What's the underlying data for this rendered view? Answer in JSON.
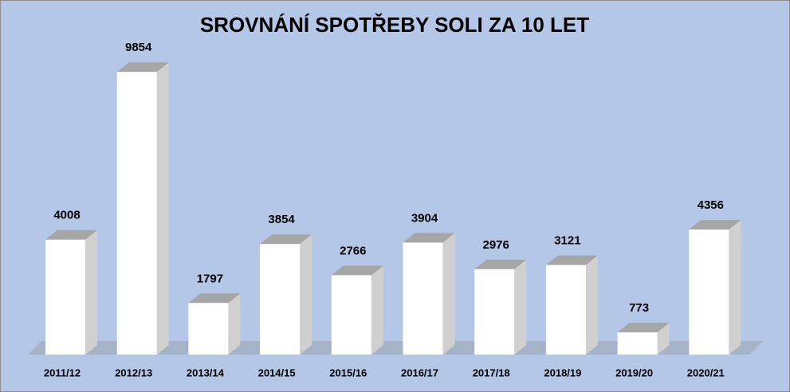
{
  "chart_data": {
    "type": "bar3d",
    "title": "SROVNÁNÍ SPOTŘEBY SOLI ZA 10 LET",
    "categories": [
      "2011/12",
      "2012/13",
      "2013/14",
      "2014/15",
      "2015/16",
      "2016/17",
      "2017/18",
      "2018/19",
      "2019/20",
      "2020/21"
    ],
    "values": [
      4008,
      9854,
      1797,
      3854,
      2766,
      3904,
      2976,
      3121,
      773,
      4356
    ],
    "color": "#ffffff"
  }
}
